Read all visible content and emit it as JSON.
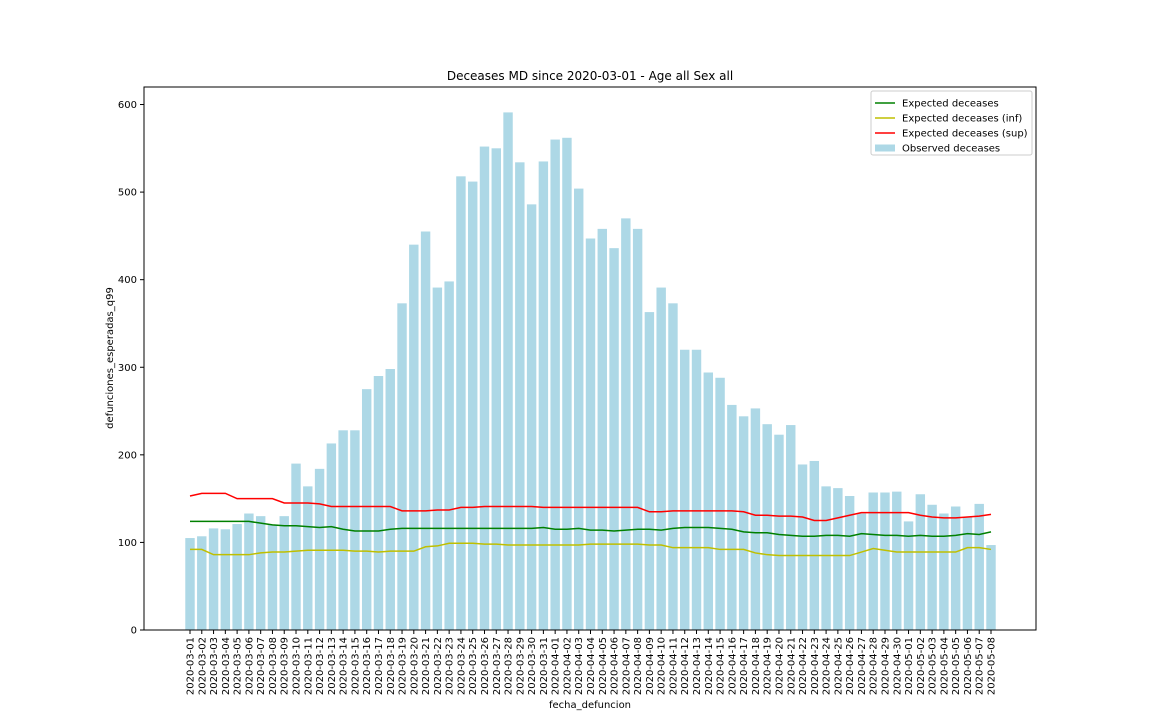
{
  "chart_data": {
    "type": "bar_line",
    "title": "Deceases MD since 2020-03-01 - Age all Sex all",
    "xlabel": "fecha_defuncion",
    "ylabel": "defunciones_esperadas_q99",
    "categories": [
      "2020-03-01",
      "2020-03-02",
      "2020-03-03",
      "2020-03-04",
      "2020-03-05",
      "2020-03-06",
      "2020-03-07",
      "2020-03-08",
      "2020-03-09",
      "2020-03-10",
      "2020-03-11",
      "2020-03-12",
      "2020-03-13",
      "2020-03-14",
      "2020-03-15",
      "2020-03-16",
      "2020-03-17",
      "2020-03-18",
      "2020-03-19",
      "2020-03-20",
      "2020-03-21",
      "2020-03-22",
      "2020-03-23",
      "2020-03-24",
      "2020-03-25",
      "2020-03-26",
      "2020-03-27",
      "2020-03-28",
      "2020-03-29",
      "2020-03-30",
      "2020-03-31",
      "2020-04-01",
      "2020-04-02",
      "2020-04-03",
      "2020-04-04",
      "2020-04-05",
      "2020-04-06",
      "2020-04-07",
      "2020-04-08",
      "2020-04-09",
      "2020-04-10",
      "2020-04-11",
      "2020-04-12",
      "2020-04-13",
      "2020-04-14",
      "2020-04-15",
      "2020-04-16",
      "2020-04-17",
      "2020-04-18",
      "2020-04-19",
      "2020-04-20",
      "2020-04-21",
      "2020-04-22",
      "2020-04-23",
      "2020-04-24",
      "2020-04-25",
      "2020-04-26",
      "2020-04-27",
      "2020-04-28",
      "2020-04-29",
      "2020-04-30",
      "2020-05-01",
      "2020-05-02",
      "2020-05-03",
      "2020-05-04",
      "2020-05-05",
      "2020-05-06",
      "2020-05-07",
      "2020-05-08"
    ],
    "series": [
      {
        "name": "Expected deceases",
        "kind": "line",
        "color": "#008000",
        "values": [
          124,
          124,
          124,
          124,
          124,
          124,
          122,
          120,
          119,
          119,
          118,
          117,
          118,
          115,
          113,
          113,
          113,
          115,
          116,
          116,
          116,
          116,
          116,
          116,
          116,
          116,
          116,
          116,
          116,
          116,
          117,
          115,
          115,
          116,
          114,
          114,
          113,
          114,
          115,
          115,
          114,
          116,
          117,
          117,
          117,
          116,
          115,
          112,
          111,
          111,
          109,
          108,
          107,
          107,
          108,
          108,
          107,
          110,
          109,
          108,
          108,
          107,
          108,
          107,
          107,
          108,
          110,
          109,
          112
        ]
      },
      {
        "name": "Expected deceases (inf)",
        "kind": "line",
        "color": "#bfbf00",
        "values": [
          92,
          92,
          86,
          86,
          86,
          86,
          88,
          89,
          89,
          90,
          91,
          91,
          91,
          91,
          90,
          90,
          89,
          90,
          90,
          90,
          95,
          96,
          99,
          99,
          99,
          98,
          98,
          97,
          97,
          97,
          97,
          97,
          97,
          97,
          98,
          98,
          98,
          98,
          98,
          97,
          97,
          94,
          94,
          94,
          94,
          92,
          92,
          92,
          88,
          86,
          85,
          85,
          85,
          85,
          85,
          85,
          85,
          89,
          93,
          91,
          89,
          89,
          89,
          89,
          89,
          89,
          94,
          94,
          92
        ]
      },
      {
        "name": "Expected deceases (sup)",
        "kind": "line",
        "color": "#ff0000",
        "values": [
          153,
          156,
          156,
          156,
          150,
          150,
          150,
          150,
          145,
          145,
          145,
          144,
          141,
          141,
          141,
          141,
          141,
          141,
          136,
          136,
          136,
          137,
          137,
          140,
          140,
          141,
          141,
          141,
          141,
          141,
          140,
          140,
          140,
          140,
          140,
          140,
          140,
          140,
          140,
          135,
          135,
          136,
          136,
          136,
          136,
          136,
          136,
          135,
          131,
          131,
          130,
          130,
          129,
          125,
          125,
          128,
          131,
          134,
          134,
          134,
          134,
          134,
          131,
          129,
          128,
          128,
          129,
          130,
          132
        ]
      },
      {
        "name": "Observed deceases",
        "kind": "bar",
        "color": "#add8e6",
        "values": [
          105,
          107,
          116,
          115,
          121,
          133,
          130,
          120,
          130,
          190,
          164,
          184,
          213,
          228,
          228,
          275,
          290,
          298,
          373,
          440,
          455,
          391,
          398,
          518,
          512,
          552,
          550,
          591,
          534,
          486,
          535,
          560,
          562,
          504,
          447,
          458,
          436,
          470,
          458,
          363,
          391,
          373,
          320,
          320,
          294,
          288,
          257,
          244,
          253,
          235,
          223,
          234,
          189,
          193,
          164,
          162,
          153,
          133,
          157,
          157,
          158,
          124,
          155,
          143,
          133,
          141,
          129,
          144,
          97
        ]
      }
    ],
    "ylim": [
      0,
      620
    ],
    "yticks": [
      0,
      100,
      200,
      300,
      400,
      500,
      600
    ],
    "legend": "upper right"
  }
}
